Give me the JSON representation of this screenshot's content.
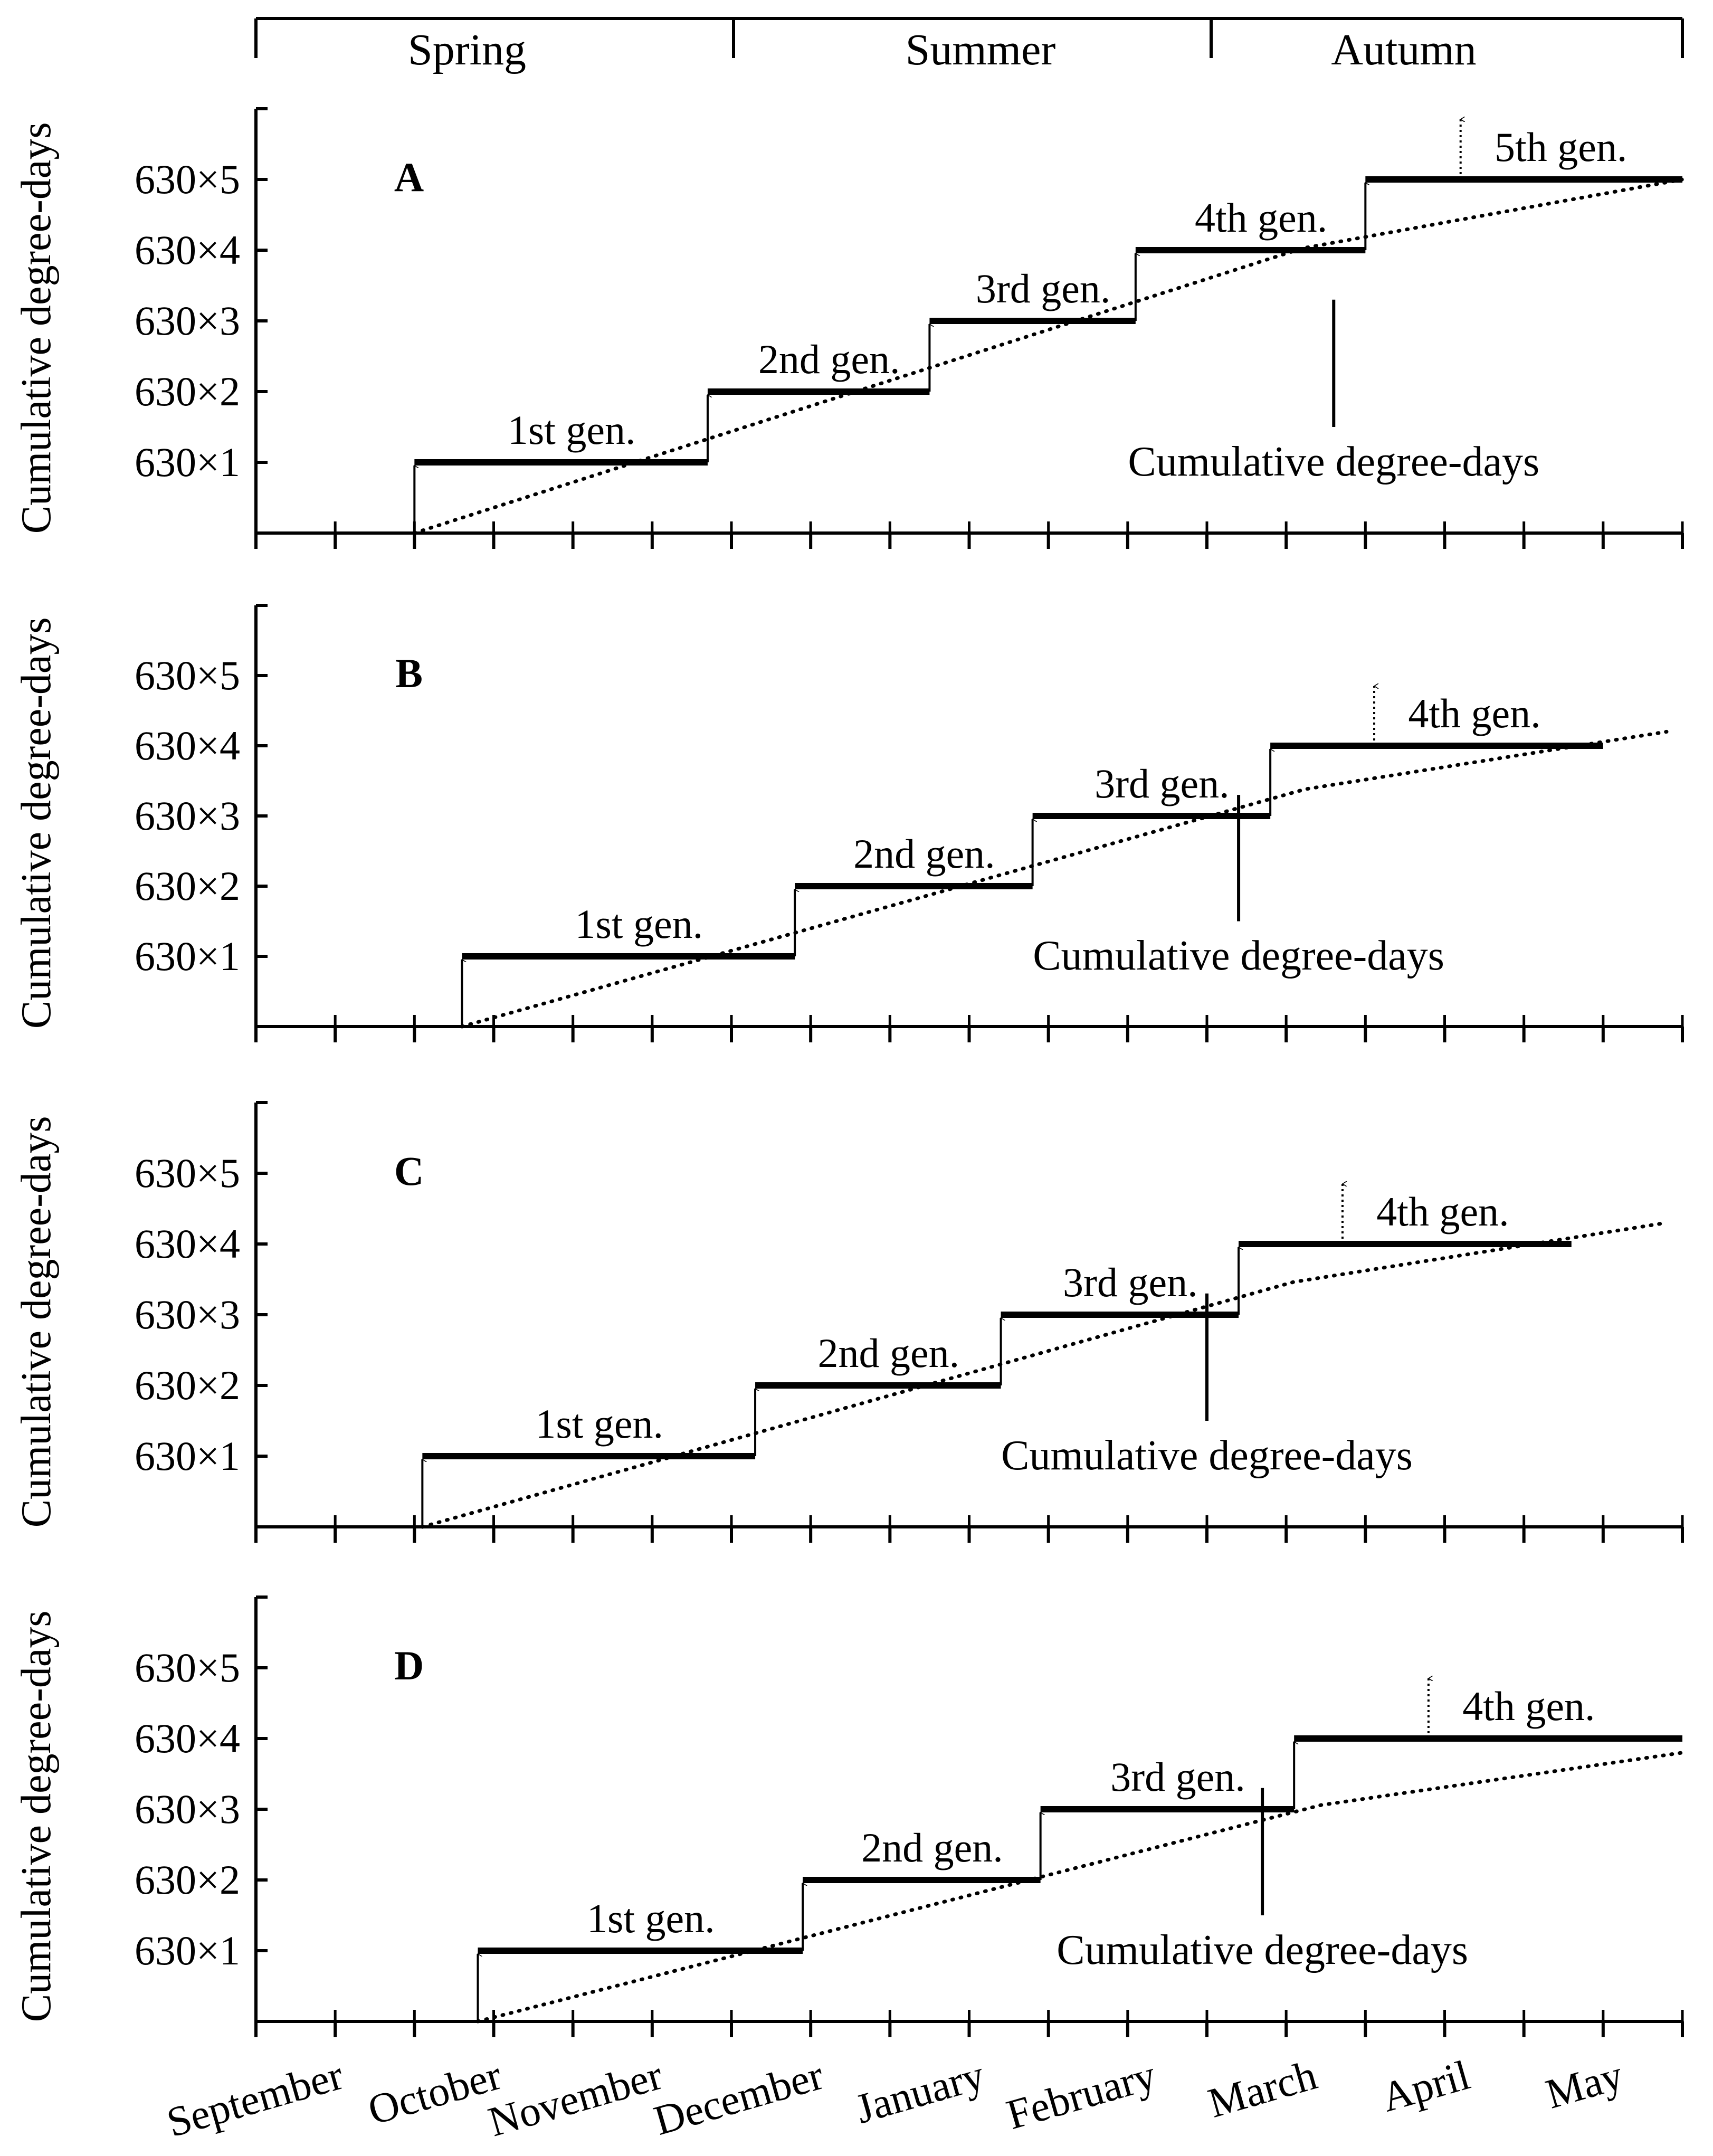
{
  "seasons": [
    "Spring",
    "Summer",
    "Autumn"
  ],
  "chart_data": {
    "type": "line",
    "title": "",
    "xlabel": "",
    "ylabel": "Cumulative degree-days",
    "months": [
      "September",
      "October",
      "November",
      "December",
      "January",
      "February",
      "March",
      "April",
      "May"
    ],
    "y_ticks": [
      "630×1",
      "630×2",
      "630×3",
      "630×4",
      "630×5"
    ],
    "y_units_per_generation": 630,
    "panels": [
      {
        "letter": "A",
        "curve_label": "Cumulative degree-days",
        "start_month": 1.0,
        "curve_end_month": 9.0,
        "curve_end_level": 5.0,
        "gen_start_months": [
          1.0,
          2.85,
          4.25,
          5.55,
          7.0
        ],
        "generations": [
          {
            "label": "1st gen.",
            "level": 1
          },
          {
            "label": "2nd gen.",
            "level": 2
          },
          {
            "label": "3rd gen.",
            "level": 3
          },
          {
            "label": "4th gen.",
            "level": 4
          },
          {
            "label": "5th gen.",
            "level": 5,
            "incomplete": true,
            "end_month": 9.0
          }
        ]
      },
      {
        "letter": "B",
        "curve_label": "Cumulative degree-days",
        "start_month": 1.3,
        "curve_end_month": 8.9,
        "curve_end_level": 4.2,
        "gen_start_months": [
          1.3,
          3.4,
          4.9,
          6.4
        ],
        "generations": [
          {
            "label": "1st gen.",
            "level": 1
          },
          {
            "label": "2nd gen.",
            "level": 2
          },
          {
            "label": "3rd gen.",
            "level": 3
          },
          {
            "label": "4th gen.",
            "level": 4,
            "incomplete": true,
            "end_month": 8.5
          }
        ]
      },
      {
        "letter": "C",
        "curve_label": "Cumulative degree-days",
        "start_month": 1.05,
        "curve_end_month": 8.9,
        "curve_end_level": 4.3,
        "gen_start_months": [
          1.05,
          3.15,
          4.7,
          6.2
        ],
        "generations": [
          {
            "label": "1st gen.",
            "level": 1
          },
          {
            "label": "2nd gen.",
            "level": 2
          },
          {
            "label": "3rd gen.",
            "level": 3
          },
          {
            "label": "4th gen.",
            "level": 4,
            "incomplete": true,
            "end_month": 8.3
          }
        ]
      },
      {
        "letter": "D",
        "curve_label": "Cumulative degree-days",
        "start_month": 1.4,
        "curve_end_month": 9.0,
        "curve_end_level": 3.8,
        "gen_start_months": [
          1.4,
          3.45,
          4.95,
          6.55
        ],
        "generations": [
          {
            "label": "1st gen.",
            "level": 1
          },
          {
            "label": "2nd gen.",
            "level": 2
          },
          {
            "label": "3rd gen.",
            "level": 3
          },
          {
            "label": "4th gen.",
            "level": 4,
            "incomplete": true,
            "end_month": 9.0
          }
        ]
      }
    ]
  }
}
